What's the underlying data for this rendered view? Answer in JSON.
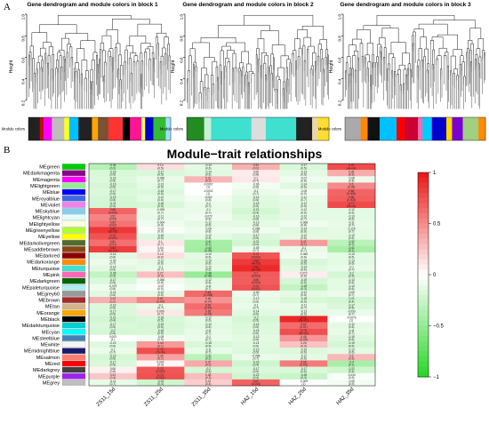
{
  "panel_a": {
    "letter": "A",
    "height_label": "Height",
    "module_colors_label": "Module colors",
    "y_ticks": [
      "1.0",
      "0.8",
      "0.6",
      "0.4",
      "0.2"
    ],
    "blocks": [
      {
        "title": "Gene dendrogram and module colors in block 1",
        "colors": [
          "#222222",
          "#bb1111",
          "#ff00ff",
          "#bdbdbd",
          "#ffff22",
          "#00bfff",
          "#222222",
          "#ffa500",
          "#7a5230",
          "#ff3333",
          "#000000",
          "#ff1493",
          "#ffff66",
          "#0000cc",
          "#33bb33",
          "#a0e0ff"
        ]
      },
      {
        "title": "Gene dendrogram and module colors in block 2",
        "colors": [
          "#228b22",
          "#c8f0d8",
          "#40e0d0",
          "#40e0d0",
          "#40e0d0",
          "#dddddd",
          "#40e0d0",
          "#40e0d0",
          "#222222",
          "#e8d8a8",
          "#ffdd33"
        ]
      },
      {
        "title": "Gene dendrogram and module colors in block 3",
        "colors": [
          "#aaaaaa",
          "#ff8800",
          "#111111",
          "#00bfff",
          "#ff0000",
          "#cc0033",
          "#ff69b4",
          "#00ccff",
          "#0000cc",
          "#ffd700",
          "#7b00d4",
          "#a0d080",
          "#ff8c00"
        ]
      }
    ]
  },
  "panel_b": {
    "letter": "B",
    "title": "Module−trait relationships",
    "traits": [
      "ZS11_15d",
      "ZS11_25d",
      "ZS11_35d",
      "HA2_15d",
      "HA2_25d",
      "HA2_35d"
    ],
    "legend_ticks": [
      "1",
      "0.5",
      "0",
      "−0.5",
      "−1"
    ],
    "modules": [
      {
        "name": "MEgreen",
        "color": "#00cc00",
        "cells": [
          [
            -0.34,
            "0.2"
          ],
          [
            0.14,
            "0.5"
          ],
          [
            -0.13,
            "0.6"
          ],
          [
            0.33,
            "0.2"
          ],
          [
            -0.17,
            "0.5"
          ],
          [
            0.76,
            "4e-04"
          ]
        ]
      },
      {
        "name": "MEdarkmagenta",
        "color": "#8b008b",
        "cells": [
          [
            -0.18,
            "0.5"
          ],
          [
            -0.17,
            "0.5"
          ],
          [
            -0.14,
            "0.6"
          ],
          [
            0.08,
            "0.8"
          ],
          [
            -0.13,
            "0.6"
          ],
          [
            0.35,
            "0.2"
          ]
        ]
      },
      {
        "name": "MEmagenta",
        "color": "#ff00ff",
        "cells": [
          [
            -0.16,
            "0.5"
          ],
          [
            -0.096,
            "0.7"
          ],
          [
            0.31,
            "0.2"
          ],
          [
            0.1,
            "0.7"
          ],
          [
            -0.07,
            "0.8"
          ],
          [
            -0.08,
            "0.8"
          ]
        ]
      },
      {
        "name": "MElightgreen",
        "color": "#90ee90",
        "cells": [
          [
            -0.19,
            "0.5"
          ],
          [
            -0.13,
            "0.6"
          ],
          [
            -0.0007,
            "1"
          ],
          [
            -0.06,
            "0.8"
          ],
          [
            -0.14,
            "0.6"
          ],
          [
            0.5,
            "0.04"
          ]
        ]
      },
      {
        "name": "MEblue",
        "color": "#0000ff",
        "cells": [
          [
            -0.17,
            "0.5"
          ],
          [
            -0.16,
            "0.5"
          ],
          [
            -0.0002,
            "1"
          ],
          [
            -0.1,
            "0.7"
          ],
          [
            -0.05,
            "0.9"
          ],
          [
            0.66,
            "0.005"
          ]
        ]
      },
      {
        "name": "MEroyalblue",
        "color": "#4169e1",
        "cells": [
          [
            -0.19,
            "0.5"
          ],
          [
            -0.12,
            "0.6"
          ],
          [
            -0.062,
            "0.8"
          ],
          [
            -0.14,
            "0.6"
          ],
          [
            -0.11,
            "0.7"
          ],
          [
            0.68,
            "0.004"
          ]
        ]
      },
      {
        "name": "MEviolet",
        "color": "#ee82ee",
        "cells": [
          [
            -0.21,
            "0.4"
          ],
          [
            -0.18,
            "0.5"
          ],
          [
            -0.1,
            "0.7"
          ],
          [
            -0.15,
            "0.6"
          ],
          [
            -0.12,
            "0.6"
          ],
          [
            0.77,
            "5e-04"
          ]
        ]
      },
      {
        "name": "MEskyblue",
        "color": "#87ceeb",
        "cells": [
          [
            0.66,
            "0.005"
          ],
          [
            -0.099,
            "0.7"
          ],
          [
            -0.1,
            "0.7"
          ],
          [
            -0.21,
            "0.4"
          ],
          [
            -0.12,
            "0.6"
          ],
          [
            -0.12,
            "0.6"
          ]
        ]
      },
      {
        "name": "MElightcyan",
        "color": "#e0ffff",
        "cells": [
          [
            0.52,
            "0.04"
          ],
          [
            -0.11,
            "0.7"
          ],
          [
            -0.072,
            "0.8"
          ],
          [
            -0.16,
            "0.6"
          ],
          [
            -0.12,
            "0.7"
          ],
          [
            -0.13,
            "0.6"
          ]
        ]
      },
      {
        "name": "MElightyellow",
        "color": "#ffffe0",
        "cells": [
          [
            0.59,
            "0.02"
          ],
          [
            -0.064,
            "0.8"
          ],
          [
            -0.12,
            "0.6"
          ],
          [
            -0.13,
            "0.6"
          ],
          [
            -0.068,
            "0.8"
          ],
          [
            -0.11,
            "0.7"
          ]
        ]
      },
      {
        "name": "MEgreenyellow",
        "color": "#adff2f",
        "cells": [
          [
            0.85,
            "3e-05"
          ],
          [
            -0.03,
            "0.9"
          ],
          [
            -0.08,
            "0.8"
          ],
          [
            -0.068,
            "0.8"
          ],
          [
            -0.14,
            "0.6"
          ],
          [
            -0.115,
            "0.7"
          ]
        ]
      },
      {
        "name": "MEyellow",
        "color": "#ffff00",
        "cells": [
          [
            0.73,
            "0.001"
          ],
          [
            -0.16,
            "0.5"
          ],
          [
            -0.12,
            "0.6"
          ],
          [
            -0.17,
            "0.5"
          ],
          [
            -0.12,
            "0.6"
          ],
          [
            -0.13,
            "0.6"
          ]
        ]
      },
      {
        "name": "MEdarkolivegreen",
        "color": "#556b2f",
        "cells": [
          [
            0.61,
            "0.01"
          ],
          [
            0.1,
            "0.7"
          ],
          [
            -0.41,
            "0.1"
          ],
          [
            -0.21,
            "0.4"
          ],
          [
            0.42,
            "0.1"
          ],
          [
            -0.32,
            "0.2"
          ]
        ]
      },
      {
        "name": "MEsaddlebrown",
        "color": "#8b4513",
        "cells": [
          [
            0.82,
            "1e-04"
          ],
          [
            0.04,
            "0.9"
          ],
          [
            -0.43,
            "0.09"
          ],
          [
            -0.09,
            "0.7"
          ],
          [
            -0.1,
            "0.7"
          ],
          [
            -0.41,
            "0.1"
          ]
        ]
      },
      {
        "name": "MEdarkred",
        "color": "#8b0000",
        "cells": [
          [
            -0.14,
            "0.6"
          ],
          [
            0.13,
            "0.6"
          ],
          [
            -0.12,
            "0.6"
          ],
          [
            0.72,
            "0.002"
          ],
          [
            -0.065,
            "0.8"
          ],
          [
            -0.13,
            "0.6"
          ]
        ]
      },
      {
        "name": "MEdarkorange",
        "color": "#ff8c00",
        "cells": [
          [
            -0.09,
            "0.7"
          ],
          [
            -0.12,
            "0.6"
          ],
          [
            -0.15,
            "0.6"
          ],
          [
            0.84,
            "4e-05"
          ],
          [
            -0.18,
            "0.5"
          ],
          [
            -0.13,
            "0.6"
          ]
        ]
      },
      {
        "name": "MEturquoise",
        "color": "#40e0d0",
        "cells": [
          [
            -0.14,
            "0.6"
          ],
          [
            -0.1,
            "0.7"
          ],
          [
            -0.12,
            "0.6"
          ],
          [
            0.91,
            "1e-06"
          ],
          [
            -0.14,
            "0.6"
          ],
          [
            -0.1,
            "0.7"
          ]
        ]
      },
      {
        "name": "MEpink",
        "color": "#ff69b4",
        "cells": [
          [
            -0.28,
            "0.3"
          ],
          [
            0.27,
            "0.3"
          ],
          [
            -0.48,
            "0.06"
          ],
          [
            0.7,
            "0.003"
          ],
          [
            0.072,
            "0.8"
          ],
          [
            -0.2,
            "0.5"
          ]
        ]
      },
      {
        "name": "MEdarkgreen",
        "color": "#006400",
        "cells": [
          [
            -0.17,
            "0.5"
          ],
          [
            -0.066,
            "0.8"
          ],
          [
            -0.12,
            "0.6"
          ],
          [
            0.69,
            "0.003"
          ],
          [
            -0.19,
            "0.5"
          ],
          [
            -0.13,
            "0.6"
          ]
        ]
      },
      {
        "name": "MEpaleturquoise",
        "color": "#afeeee",
        "cells": [
          [
            -0.079,
            "0.8"
          ],
          [
            -0.02,
            "0.9"
          ],
          [
            -0.11,
            "0.7"
          ],
          [
            0.73,
            "0.001"
          ],
          [
            -0.28,
            "0.3"
          ],
          [
            -0.13,
            "0.6"
          ]
        ]
      },
      {
        "name": "MEgrey60",
        "color": "#999999",
        "cells": [
          [
            -0.14,
            "0.6"
          ],
          [
            -0.12,
            "0.6"
          ],
          [
            0.64,
            "0.008"
          ],
          [
            -0.09,
            "0.7"
          ],
          [
            -0.12,
            "0.6"
          ],
          [
            -0.09,
            "0.7"
          ]
        ]
      },
      {
        "name": "MEbrown",
        "color": "#a52a2a",
        "cells": [
          [
            0.34,
            "0.2"
          ],
          [
            0.51,
            "0.04"
          ],
          [
            0.46,
            "0.07"
          ],
          [
            -0.13,
            "0.6"
          ],
          [
            -0.18,
            "0.5"
          ],
          [
            -0.21,
            "0.4"
          ]
        ]
      },
      {
        "name": "MEtan",
        "color": "#d2b48c",
        "cells": [
          [
            -0.16,
            "0.5"
          ],
          [
            -0.1,
            "0.7"
          ],
          [
            0.62,
            "0.01"
          ],
          [
            -0.1,
            "0.7"
          ],
          [
            -0.11,
            "0.7"
          ],
          [
            -0.17,
            "0.5"
          ]
        ]
      },
      {
        "name": "MEorange",
        "color": "#ffa500",
        "cells": [
          [
            -0.17,
            "0.5"
          ],
          [
            0.099,
            "0.7"
          ],
          [
            0.56,
            "0.03"
          ],
          [
            -0.14,
            "0.6"
          ],
          [
            -0.13,
            "0.6"
          ],
          [
            -0.093,
            "0.7"
          ]
        ]
      },
      {
        "name": "MEblack",
        "color": "#000000",
        "cells": [
          [
            -0.21,
            "0.4"
          ],
          [
            -0.18,
            "0.5"
          ],
          [
            -0.12,
            "0.6"
          ],
          [
            -0.2,
            "0.5"
          ],
          [
            0.92,
            "5e-07"
          ],
          [
            -0.0079,
            "1"
          ]
        ]
      },
      {
        "name": "MEdarkturquoise",
        "color": "#00ced1",
        "cells": [
          [
            -0.17,
            "0.5"
          ],
          [
            -0.19,
            "0.5"
          ],
          [
            -0.14,
            "0.6"
          ],
          [
            -0.16,
            "0.5"
          ],
          [
            0.62,
            "0.01"
          ],
          [
            -0.12,
            "0.6"
          ]
        ]
      },
      {
        "name": "MEcyan",
        "color": "#00ffff",
        "cells": [
          [
            -0.2,
            "0.5"
          ],
          [
            -0.18,
            "0.5"
          ],
          [
            -0.11,
            "0.7"
          ],
          [
            -0.15,
            "0.6"
          ],
          [
            0.75,
            "8e-04"
          ],
          [
            -0.11,
            "0.7"
          ]
        ]
      },
      {
        "name": "MEsteelblue",
        "color": "#4682b4",
        "cells": [
          [
            0.003,
            "1"
          ],
          [
            -0.05,
            "0.9"
          ],
          [
            -0.1,
            "0.7"
          ],
          [
            -0.13,
            "0.6"
          ],
          [
            0.45,
            "0.08"
          ],
          [
            -0.15,
            "0.6"
          ]
        ]
      },
      {
        "name": "MEwhite",
        "color": "#f5f5f5",
        "cells": [
          [
            -0.15,
            "0.6"
          ],
          [
            0.43,
            "0.1"
          ],
          [
            -0.18,
            "0.5"
          ],
          [
            -0.14,
            "0.6"
          ],
          [
            0.26,
            "0.3"
          ],
          [
            -0.19,
            "0.5"
          ]
        ]
      },
      {
        "name": "MEmidnightblue",
        "color": "#191970",
        "cells": [
          [
            -0.1,
            "0.7"
          ],
          [
            0.75,
            "7e-04"
          ],
          [
            -0.11,
            "0.7"
          ],
          [
            -0.16,
            "0.5"
          ],
          [
            -0.16,
            "0.6"
          ],
          [
            -0.13,
            "0.6"
          ]
        ]
      },
      {
        "name": "MEsalmon",
        "color": "#fa8072",
        "cells": [
          [
            -0.19,
            "0.5"
          ],
          [
            0.39,
            "0.1"
          ],
          [
            -0.31,
            "0.2"
          ],
          [
            -0.098,
            "0.7"
          ],
          [
            -0.12,
            "0.6"
          ],
          [
            0.3,
            "0.3"
          ]
        ]
      },
      {
        "name": "MEred",
        "color": "#ff0000",
        "cells": [
          [
            -0.17,
            "0.5"
          ],
          [
            0.042,
            "0.9"
          ],
          [
            0.37,
            "0.2"
          ],
          [
            -0.23,
            "0.4"
          ],
          [
            0.56,
            "0.03"
          ],
          [
            -0.4,
            "0.1"
          ]
        ]
      },
      {
        "name": "MEdarkgrey",
        "color": "#404040",
        "cells": [
          [
            0.06,
            "0.8"
          ],
          [
            0.72,
            "0.002"
          ],
          [
            -0.2,
            "0.5"
          ],
          [
            -0.17,
            "0.5"
          ],
          [
            -0.17,
            "0.5"
          ],
          [
            -0.22,
            "0.4"
          ]
        ]
      },
      {
        "name": "MEpurple",
        "color": "#a020f0",
        "cells": [
          [
            0.24,
            "0.4"
          ],
          [
            0.74,
            "0.001"
          ],
          [
            0.28,
            "0.3"
          ],
          [
            -0.22,
            "0.4"
          ],
          [
            -0.26,
            "0.3"
          ],
          [
            -0.034,
            "0.9"
          ]
        ]
      },
      {
        "name": "MEgrey",
        "color": "#bebebe",
        "cells": [
          [
            -0.11,
            "0.7"
          ],
          [
            -0.23,
            "0.4"
          ],
          [
            0.21,
            "0.4"
          ],
          [
            0.67,
            "0.005"
          ],
          [
            -0.009,
            "1"
          ],
          [
            -0.05,
            "0.9"
          ]
        ]
      }
    ]
  }
}
